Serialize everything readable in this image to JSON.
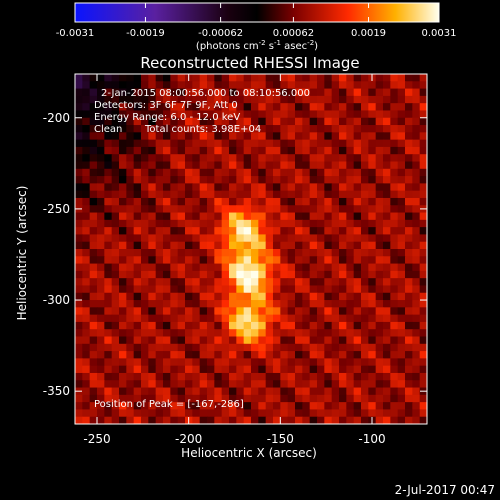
{
  "colors": {
    "background": "#000000",
    "foreground": "#ffffff",
    "colormap": [
      "#0a14ff",
      "#5a20a0",
      "#000000",
      "#7a0000",
      "#ff2a00",
      "#ffb000",
      "#ffffee"
    ]
  },
  "colorbar": {
    "tick_labels": [
      "-0.0031",
      "-0.0019",
      "-0.00062",
      "0.00062",
      "0.0019",
      "0.0031"
    ],
    "tick_values": [
      -0.0031,
      -0.0019,
      -0.00062,
      0.00062,
      0.0019,
      0.0031
    ],
    "range": [
      -0.0031,
      0.0031
    ],
    "units_text": "(photons cm",
    "units_exp1": "-2",
    "units_mid": " s",
    "units_exp2": "-1",
    "units_mid2": " asec",
    "units_exp3": "-2",
    "units_end": ")"
  },
  "chart_data": {
    "type": "heatmap",
    "title": "Reconstructed RHESSI Image",
    "xlabel": "Heliocentric X (arcsec)",
    "ylabel": "Heliocentric Y (arcsec)",
    "xlim": [
      -262,
      -70
    ],
    "ylim": [
      -368,
      -176
    ],
    "x_ticks": [
      -250,
      -200,
      -150,
      -100
    ],
    "y_ticks": [
      -200,
      -250,
      -300,
      -350
    ],
    "x_tick_labels": [
      "-250",
      "-200",
      "-150",
      "-100"
    ],
    "y_tick_labels": [
      "-200",
      "-250",
      "-300",
      "-350"
    ],
    "sources": [
      {
        "x": -170,
        "y": -262,
        "intensity": 0.0028,
        "sigma": 9
      },
      {
        "x": -167,
        "y": -286,
        "intensity": 0.0031,
        "sigma": 9
      },
      {
        "x": -167,
        "y": -312,
        "intensity": 0.0028,
        "sigma": 9
      }
    ],
    "annotations": {
      "time_range": "2-Jan-2015 08:00:56.000 to 08:10:56.000",
      "detectors": "Detectors: 3F 6F 7F 9F, Att 0",
      "energy_range": "Energy Range: 6.0 - 12.0 keV",
      "clean_label": "Clean",
      "total_counts": "Total counts: 3.98E+04",
      "peak_position": "Position of Peak = [-167,-286]"
    }
  },
  "footer": {
    "date": "2-Jul-2017 00:47"
  }
}
